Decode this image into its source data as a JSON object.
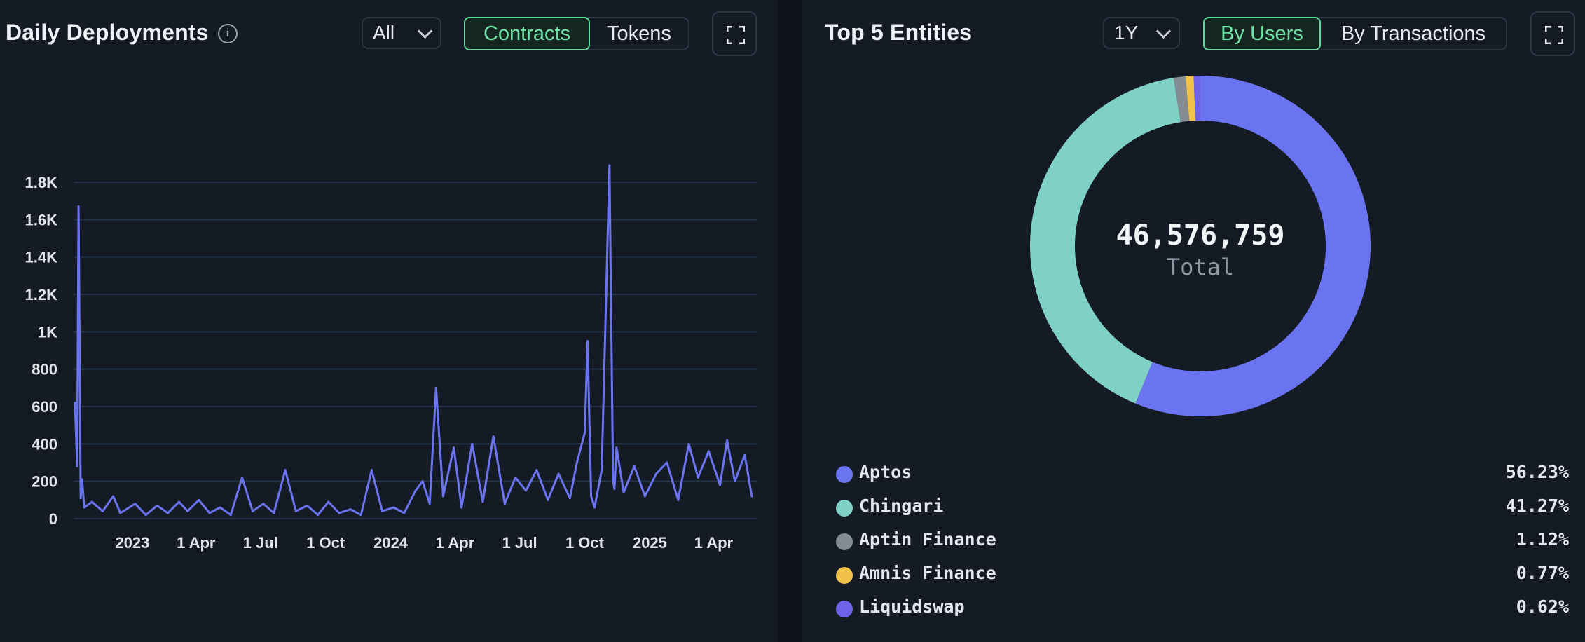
{
  "deployments": {
    "title": "Daily Deployments",
    "info_icon": "info-icon",
    "range_select": "All",
    "toggle": {
      "contracts": "Contracts",
      "tokens": "Tokens",
      "active": "Contracts"
    },
    "expand_icon": "expand-icon"
  },
  "chart_data": {
    "type": "line",
    "title": "Daily Deployments",
    "xlabel": "",
    "ylabel": "",
    "ylim": [
      0,
      1800
    ],
    "y_ticks": [
      "0",
      "200",
      "400",
      "600",
      "800",
      "1K",
      "1.2K",
      "1.4K",
      "1.6K",
      "1.8K"
    ],
    "x_ticks": [
      "2023",
      "1 Apr",
      "1 Jul",
      "1 Oct",
      "2024",
      "1 Apr",
      "1 Jul",
      "1 Oct",
      "2025",
      "1 Apr"
    ],
    "grid": true,
    "color": "#6a74f0",
    "series": [
      {
        "x": [
          "2022-10-12",
          "2022-10-15",
          "2022-10-17",
          "2022-10-20",
          "2022-10-22",
          "2022-10-25",
          "2022-11-05",
          "2022-11-20",
          "2022-12-05",
          "2022-12-15",
          "2023-01-05",
          "2023-01-20",
          "2023-02-05",
          "2023-02-20",
          "2023-03-08",
          "2023-03-20",
          "2023-04-05",
          "2023-04-20",
          "2023-05-05",
          "2023-05-20",
          "2023-06-05",
          "2023-06-20",
          "2023-07-05",
          "2023-07-20",
          "2023-08-05",
          "2023-08-20",
          "2023-09-05",
          "2023-09-20",
          "2023-10-05",
          "2023-10-20",
          "2023-11-05",
          "2023-11-20",
          "2023-12-05",
          "2023-12-20",
          "2024-01-05",
          "2024-01-20",
          "2024-02-05",
          "2024-02-15",
          "2024-02-25",
          "2024-03-05",
          "2024-03-15",
          "2024-03-30",
          "2024-04-10",
          "2024-04-25",
          "2024-05-10",
          "2024-05-25",
          "2024-06-10",
          "2024-06-25",
          "2024-07-10",
          "2024-07-25",
          "2024-08-10",
          "2024-08-25",
          "2024-09-10",
          "2024-09-20",
          "2024-10-01",
          "2024-10-05",
          "2024-10-10",
          "2024-10-15",
          "2024-10-25",
          "2024-11-05",
          "2024-11-10",
          "2024-11-12",
          "2024-11-15",
          "2024-11-25",
          "2024-12-10",
          "2024-12-25",
          "2025-01-10",
          "2025-01-25",
          "2025-02-10",
          "2025-02-25",
          "2025-03-10",
          "2025-03-25",
          "2025-04-10",
          "2025-04-20",
          "2025-05-01",
          "2025-05-15",
          "2025-05-25"
        ],
        "y": [
          620,
          280,
          1670,
          110,
          210,
          60,
          90,
          40,
          120,
          30,
          80,
          20,
          70,
          30,
          90,
          40,
          100,
          30,
          60,
          20,
          220,
          40,
          80,
          30,
          260,
          40,
          70,
          20,
          90,
          30,
          50,
          20,
          260,
          40,
          60,
          30,
          150,
          200,
          80,
          700,
          120,
          380,
          60,
          400,
          90,
          440,
          80,
          220,
          150,
          260,
          100,
          240,
          110,
          300,
          460,
          950,
          120,
          60,
          260,
          1890,
          200,
          160,
          380,
          140,
          280,
          120,
          240,
          300,
          100,
          400,
          220,
          360,
          180,
          420,
          200,
          340,
          120
        ]
      }
    ]
  },
  "entities": {
    "title": "Top 5 Entities",
    "range_select": "1Y",
    "toggle": {
      "by_users": "By Users",
      "by_transactions": "By Transactions",
      "active": "By Users"
    },
    "expand_icon": "expand-icon",
    "total_value": "46,576,759",
    "total_label": "Total",
    "items": [
      {
        "name": "Aptos",
        "pct": "56.23%",
        "value": 56.23,
        "color": "#6a74f0"
      },
      {
        "name": "Chingari",
        "pct": "41.27%",
        "value": 41.27,
        "color": "#7fd1c6"
      },
      {
        "name": "Aptin Finance",
        "pct": "1.12%",
        "value": 1.12,
        "color": "#868c94"
      },
      {
        "name": "Amnis Finance",
        "pct": "0.77%",
        "value": 0.77,
        "color": "#f0c24a"
      },
      {
        "name": "Liquidswap",
        "pct": "0.62%",
        "value": 0.62,
        "color": "#6e63e8"
      }
    ]
  }
}
